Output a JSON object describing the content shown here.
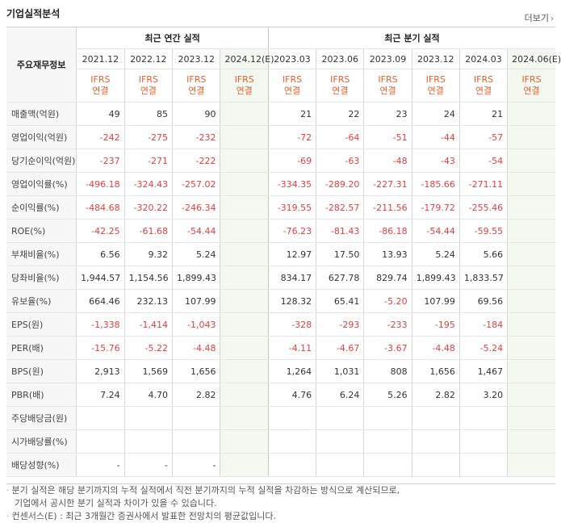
{
  "header": {
    "title": "기업실적분석",
    "more_label": "더보기",
    "more_icon": "chevron-right-icon"
  },
  "table": {
    "row_header": "주요재무정보",
    "group_annual": "최근 연간 실적",
    "group_quarter": "최근 분기 실적",
    "annual_periods": [
      "2021.12",
      "2022.12",
      "2023.12",
      "2024.12(E)"
    ],
    "quarter_periods": [
      "2023.03",
      "2023.06",
      "2023.09",
      "2023.12",
      "2024.03",
      "2024.06(E)"
    ],
    "basis_top": "IFRS",
    "basis_bottom": "연결",
    "rows": [
      {
        "label": "매출액(억원)",
        "annual": [
          "49",
          "85",
          "90",
          ""
        ],
        "quarter": [
          "21",
          "22",
          "23",
          "24",
          "21",
          ""
        ]
      },
      {
        "label": "영업이익(억원)",
        "annual": [
          "-242",
          "-275",
          "-232",
          ""
        ],
        "quarter": [
          "-72",
          "-64",
          "-51",
          "-44",
          "-57",
          ""
        ]
      },
      {
        "label": "당기순이익(억원)",
        "annual": [
          "-237",
          "-271",
          "-222",
          ""
        ],
        "quarter": [
          "-69",
          "-63",
          "-48",
          "-43",
          "-54",
          ""
        ]
      },
      {
        "label": "영업이익률(%)",
        "annual": [
          "-496.18",
          "-324.43",
          "-257.02",
          ""
        ],
        "quarter": [
          "-334.35",
          "-289.20",
          "-227.31",
          "-185.66",
          "-271.11",
          ""
        ]
      },
      {
        "label": "순이익률(%)",
        "annual": [
          "-484.68",
          "-320.22",
          "-246.34",
          ""
        ],
        "quarter": [
          "-319.55",
          "-282.57",
          "-211.56",
          "-179.72",
          "-255.46",
          ""
        ]
      },
      {
        "label": "ROE(%)",
        "annual": [
          "-42.25",
          "-61.68",
          "-54.44",
          ""
        ],
        "quarter": [
          "-76.23",
          "-81.43",
          "-86.18",
          "-54.44",
          "-59.55",
          ""
        ]
      },
      {
        "label": "부채비율(%)",
        "annual": [
          "6.56",
          "9.32",
          "5.24",
          ""
        ],
        "quarter": [
          "12.97",
          "17.50",
          "13.93",
          "5.24",
          "5.66",
          ""
        ]
      },
      {
        "label": "당좌비율(%)",
        "annual": [
          "1,944.57",
          "1,154.56",
          "1,899.43",
          ""
        ],
        "quarter": [
          "834.17",
          "627.78",
          "829.74",
          "1,899.43",
          "1,833.57",
          ""
        ]
      },
      {
        "label": "유보율(%)",
        "annual": [
          "664.46",
          "232.13",
          "107.99",
          ""
        ],
        "quarter": [
          "128.32",
          "65.41",
          "-5.20",
          "107.99",
          "69.56",
          ""
        ]
      },
      {
        "label": "EPS(원)",
        "annual": [
          "-1,338",
          "-1,414",
          "-1,043",
          ""
        ],
        "quarter": [
          "-328",
          "-293",
          "-233",
          "-195",
          "-184",
          ""
        ]
      },
      {
        "label": "PER(배)",
        "annual": [
          "-15.76",
          "-5.22",
          "-4.48",
          ""
        ],
        "quarter": [
          "-4.11",
          "-4.67",
          "-3.67",
          "-4.48",
          "-5.24",
          ""
        ]
      },
      {
        "label": "BPS(원)",
        "annual": [
          "2,913",
          "1,569",
          "1,656",
          ""
        ],
        "quarter": [
          "1,264",
          "1,031",
          "808",
          "1,656",
          "1,467",
          ""
        ]
      },
      {
        "label": "PBR(배)",
        "annual": [
          "7.24",
          "4.70",
          "2.82",
          ""
        ],
        "quarter": [
          "4.76",
          "6.24",
          "5.26",
          "2.82",
          "3.20",
          ""
        ]
      },
      {
        "label": "주당배당금(원)",
        "annual": [
          "",
          "",
          "",
          ""
        ],
        "quarter": [
          "",
          "",
          "",
          "",
          "",
          ""
        ]
      },
      {
        "label": "시가배당률(%)",
        "annual": [
          "",
          "",
          "",
          ""
        ],
        "quarter": [
          "",
          "",
          "",
          "",
          "",
          ""
        ]
      },
      {
        "label": "배당성향(%)",
        "annual": [
          "-",
          "-",
          "-",
          ""
        ],
        "quarter": [
          "",
          "",
          "",
          "",
          "",
          ""
        ]
      }
    ]
  },
  "notes": {
    "line1": "분기 실적은 해당 분기까지의 누적 실적에서 직전 분기까지의 누적 실적을 차감하는 방식으로 계산되므로,",
    "line2": "기업에서 공시한 분기 실적과 차이가 있을 수 있습니다.",
    "line3": "컨센서스(E) : 최근 3개월간 증권사에서 발표한 전망치의 평균값입니다.",
    "bullet": "·"
  },
  "colors": {
    "negative": "#e54040",
    "basis": "#e8612c",
    "estimate_bg": "#f3f8f0",
    "row_header_bg": "#f7f7f7"
  }
}
